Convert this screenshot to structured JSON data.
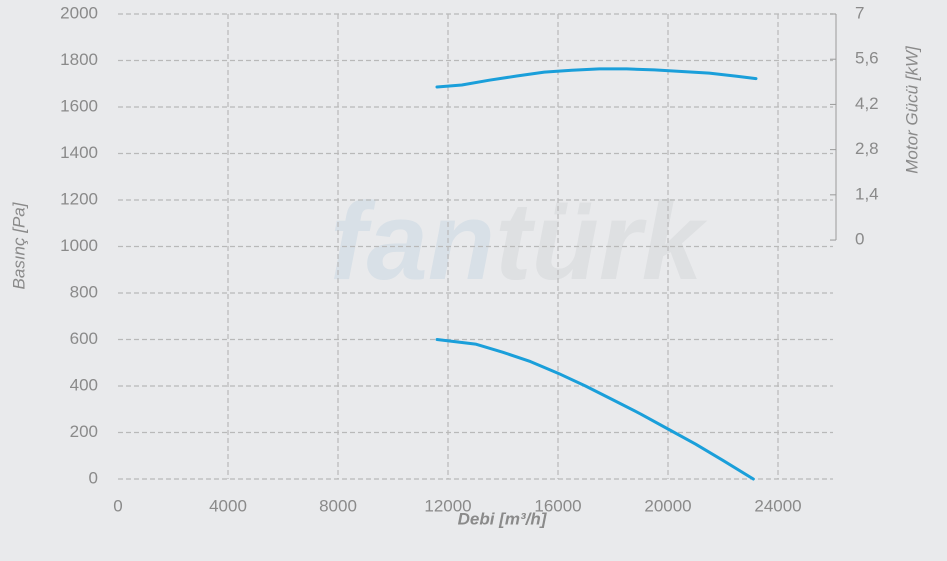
{
  "chart_data": {
    "type": "line",
    "xlabel": "Debi [m³/h]",
    "ylabel": "Basınç [Pa]",
    "y2label": "Motor Gücü [kW]",
    "watermark": [
      "fan",
      "türk"
    ],
    "xlim": [
      0,
      26000
    ],
    "xticks": [
      0,
      4000,
      8000,
      12000,
      16000,
      20000,
      24000
    ],
    "ylim": [
      0,
      2000
    ],
    "yticks": [
      0,
      200,
      400,
      600,
      800,
      1000,
      1200,
      1400,
      1600,
      1800,
      2000
    ],
    "y2lim": [
      -7.4,
      7
    ],
    "y2ticks": [
      0,
      {
        "value": 1.4,
        "label": "1,4"
      },
      {
        "value": 2.8,
        "label": "2,8"
      },
      {
        "value": 4.2,
        "label": "4,2"
      },
      {
        "value": 5.6,
        "label": "5,6"
      },
      7
    ],
    "grid": true,
    "series": [
      {
        "color": "#1a9fda",
        "axis": "y",
        "x": [
          11600,
          13000,
          14000,
          15000,
          16000,
          17000,
          18000,
          19000,
          20000,
          21000,
          22000,
          23100
        ],
        "values": [
          600,
          580,
          545,
          505,
          455,
          400,
          340,
          280,
          215,
          150,
          80,
          0
        ]
      },
      {
        "color": "#1a9fda",
        "axis": "y2",
        "x": [
          11600,
          12500,
          13500,
          14500,
          15500,
          16500,
          17500,
          18500,
          19500,
          20500,
          21500,
          22500,
          23200
        ],
        "values": [
          4.74,
          4.8,
          4.95,
          5.08,
          5.2,
          5.26,
          5.3,
          5.3,
          5.27,
          5.22,
          5.17,
          5.07,
          5.0
        ]
      }
    ]
  }
}
